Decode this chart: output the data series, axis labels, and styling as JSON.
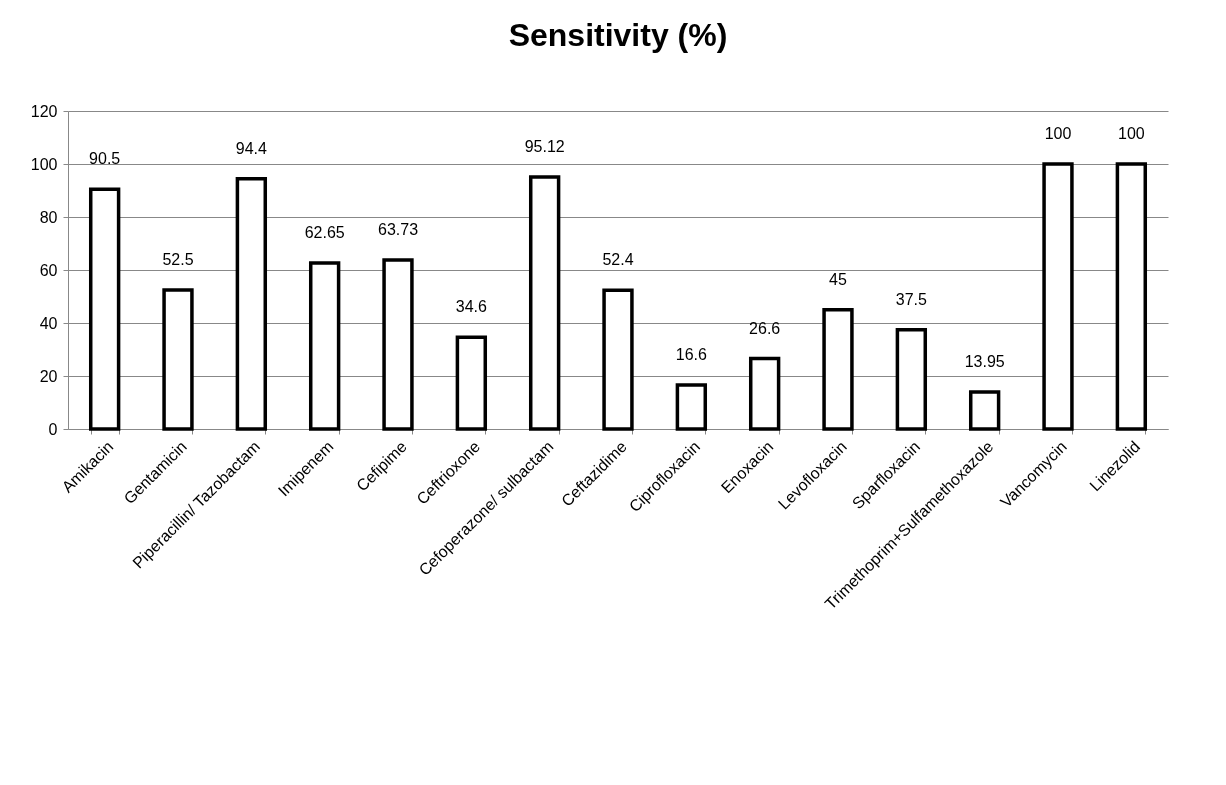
{
  "chart_data": {
    "type": "bar",
    "title": "Sensitivity (%)",
    "categories": [
      "Amikacin",
      "Gentamicin",
      "Piperacillin/ Tazobactam",
      "Imipenem",
      "Cefipime",
      "Ceftrioxone",
      "Cefoperazone/ sulbactam",
      "Ceftazidime",
      "Ciprofloxacin",
      "Enoxacin",
      "Levofloxacin",
      "Sparfloxacin",
      "Trimethoprim+Sulfamethoxazole",
      "Vancomycin",
      "Linezolid"
    ],
    "values": [
      90.5,
      52.5,
      94.4,
      62.65,
      63.73,
      34.6,
      95.12,
      52.4,
      16.6,
      26.6,
      45,
      37.5,
      13.95,
      100,
      100
    ],
    "color": "#ffffff",
    "ylim": [
      0,
      120
    ],
    "yticks": [
      0,
      20,
      40,
      60,
      80,
      100,
      120
    ],
    "grid": "y",
    "data_labels": true
  }
}
